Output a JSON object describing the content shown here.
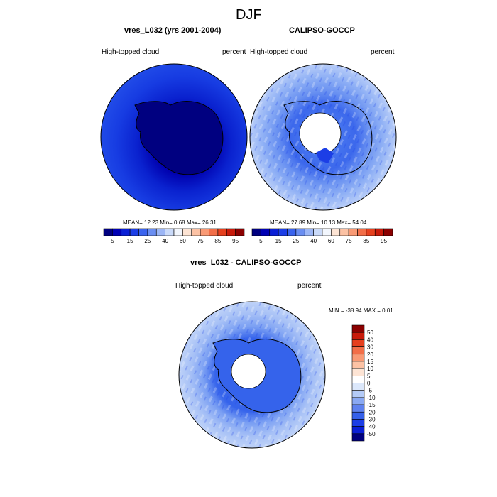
{
  "figure_title": "DJF",
  "panels": [
    {
      "title": "vres_L032 (yrs 2001-2004)",
      "left_label": "High-topped cloud",
      "right_label": "percent",
      "stats_text": "MEAN=  12.23  Min=   0.68  Max=  26.31"
    },
    {
      "title": "CALIPSO-GOCCP",
      "left_label": "High-topped cloud",
      "right_label": "percent",
      "stats_text": "MEAN=  27.89  Min=  10.13  Max=  54.04"
    },
    {
      "title": "vres_L032 - CALIPSO-GOCCP",
      "left_label": "High-topped cloud",
      "right_label": "percent",
      "stats_text": "MIN = -38.94 MAX =   0.01"
    }
  ],
  "colorbar_abs": {
    "colors": [
      "#000080",
      "#0000b4",
      "#0a1fd6",
      "#1c3ee6",
      "#3a63ee",
      "#6a8ef2",
      "#9cb6f6",
      "#cadaf9",
      "#f2f6fd",
      "#fde4d4",
      "#fcc2a4",
      "#f99a75",
      "#f26e48",
      "#e6401e",
      "#c81a0a",
      "#8b0000"
    ],
    "labels": [
      "5",
      "15",
      "25",
      "40",
      "60",
      "75",
      "85",
      "95"
    ]
  },
  "colorbar_diff": {
    "colors": [
      "#8b0000",
      "#c81a0a",
      "#e6401e",
      "#f26e48",
      "#f99a75",
      "#fcc2a4",
      "#fde4d4",
      "#ffffff",
      "#dce8fb",
      "#b4cbf7",
      "#8aa9f3",
      "#5f82ef",
      "#3560ea",
      "#1c3ee6",
      "#0a1fd6",
      "#000080"
    ],
    "labels": [
      "50",
      "40",
      "30",
      "20",
      "15",
      "10",
      "5",
      "0",
      "-5",
      "-10",
      "-15",
      "-20",
      "-30",
      "-40",
      "-50"
    ]
  }
}
